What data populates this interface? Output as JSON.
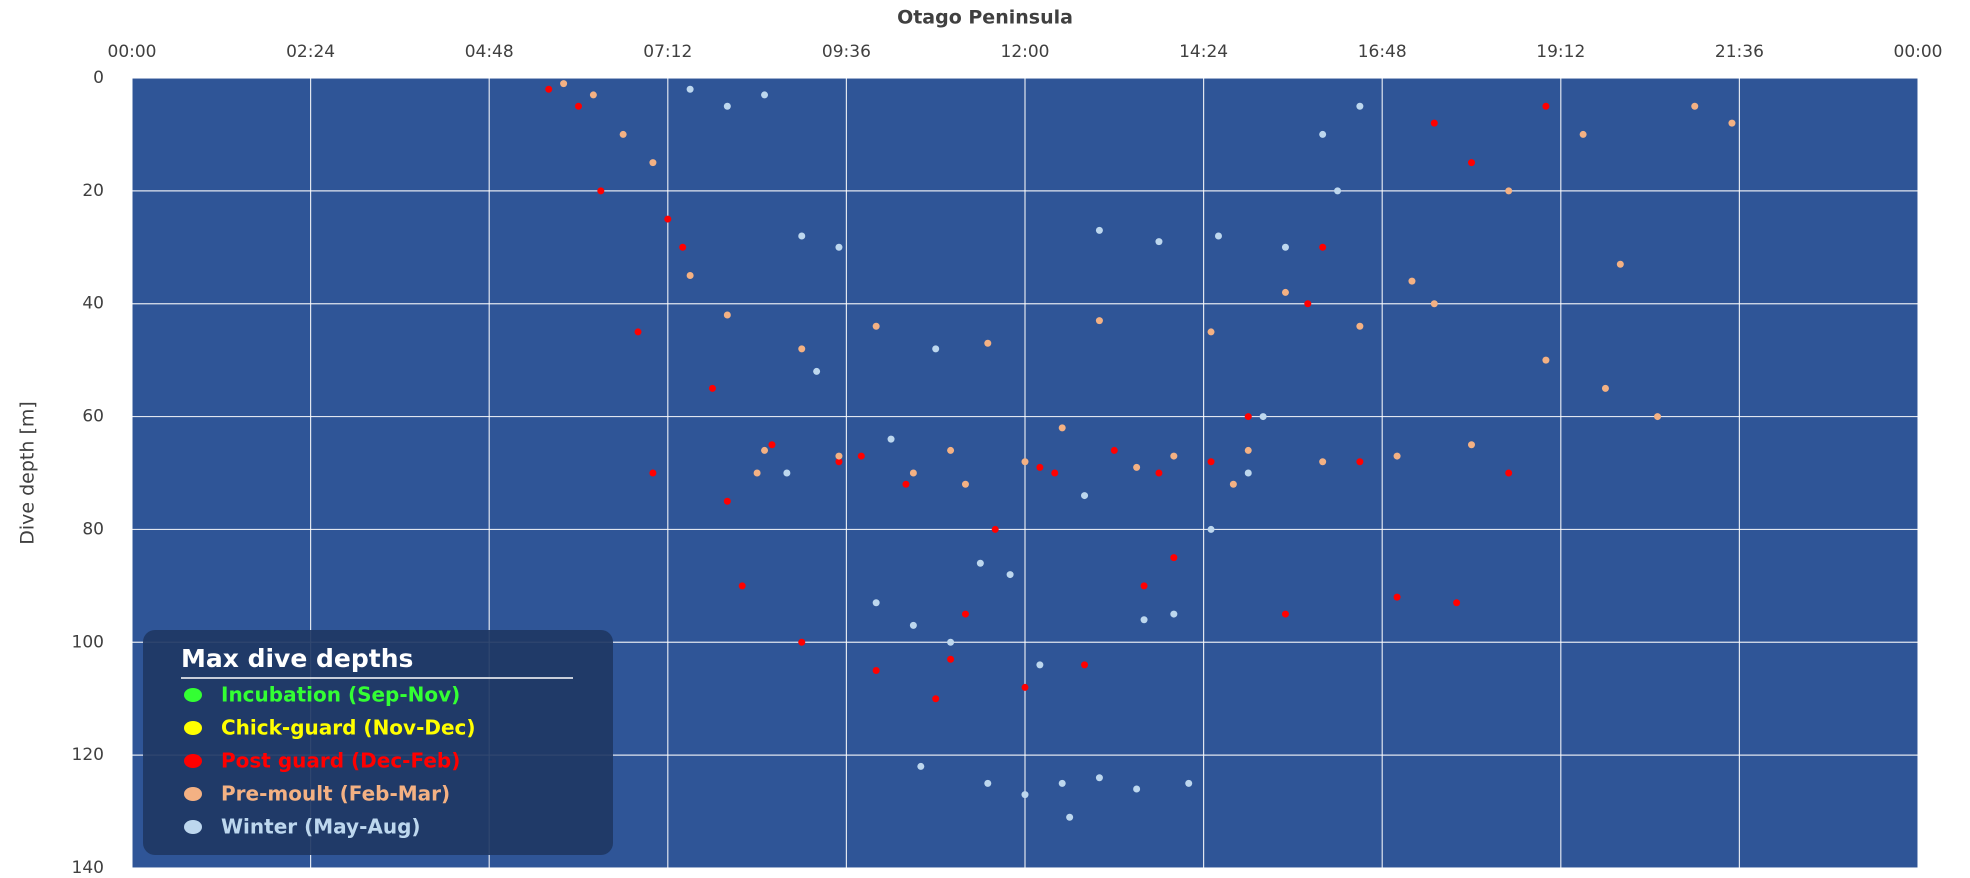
{
  "chart_data": {
    "type": "scatter",
    "title": "Otago Peninsula",
    "y_label": "Dive depth [m]",
    "xlim": [
      0,
      24
    ],
    "xticks": [
      {
        "value": 0,
        "label": "00:00"
      },
      {
        "value": 2.4,
        "label": "02:24"
      },
      {
        "value": 4.8,
        "label": "04:48"
      },
      {
        "value": 7.2,
        "label": "07:12"
      },
      {
        "value": 9.6,
        "label": "09:36"
      },
      {
        "value": 12,
        "label": "12:00"
      },
      {
        "value": 14.4,
        "label": "14:24"
      },
      {
        "value": 16.8,
        "label": "16:48"
      },
      {
        "value": 19.2,
        "label": "19:12"
      },
      {
        "value": 21.6,
        "label": "21:36"
      },
      {
        "value": 24,
        "label": "00:00"
      }
    ],
    "ylim": [
      0,
      140
    ],
    "y_inverted": true,
    "yticks": [
      0,
      20,
      40,
      60,
      80,
      100,
      120,
      140
    ],
    "grid": true,
    "background": "#2f5597",
    "legend_title": "Max dive depths",
    "legend_position": "lower left",
    "series": [
      {
        "name": "Incubation (Sep-Nov)",
        "color": "#33ff33",
        "x": [],
        "values": []
      },
      {
        "name": "Chick-guard (Nov-Dec)",
        "color": "#ffff00",
        "x": [],
        "values": []
      },
      {
        "name": "Post guard (Dec-Feb)",
        "color": "#ff0000",
        "x": [
          5.6,
          6.0,
          6.3,
          6.8,
          7.0,
          7.4,
          7.8,
          8.2,
          8.6,
          9.0,
          9.5,
          10.0,
          10.4,
          10.8,
          11.2,
          11.6,
          12.0,
          12.4,
          12.8,
          13.2,
          13.6,
          14.0,
          14.5,
          15.0,
          15.5,
          16.0,
          16.5,
          17.0,
          17.5,
          18.0,
          18.5,
          19.0,
          7.2,
          8.0,
          9.8,
          11.0,
          12.2,
          13.8,
          15.8,
          17.8
        ],
        "values": [
          2,
          5,
          20,
          45,
          70,
          30,
          55,
          90,
          65,
          100,
          68,
          105,
          72,
          110,
          95,
          80,
          108,
          70,
          104,
          66,
          90,
          85,
          68,
          60,
          95,
          30,
          68,
          92,
          8,
          15,
          70,
          5,
          25,
          75,
          67,
          103,
          69,
          70,
          40,
          93
        ]
      },
      {
        "name": "Pre-moult (Feb-Mar)",
        "color": "#f4b183",
        "x": [
          5.8,
          6.2,
          6.6,
          7.0,
          7.5,
          8.0,
          8.5,
          9.0,
          9.5,
          10.0,
          10.5,
          11.0,
          11.5,
          12.0,
          12.5,
          13.0,
          13.5,
          14.0,
          14.5,
          15.0,
          15.5,
          16.0,
          16.5,
          17.0,
          17.5,
          18.0,
          18.5,
          19.0,
          19.5,
          20.0,
          20.5,
          21.0,
          21.5,
          8.4,
          11.2,
          14.8,
          17.2,
          19.8
        ],
        "values": [
          1,
          3,
          10,
          15,
          35,
          42,
          66,
          48,
          67,
          44,
          70,
          66,
          47,
          68,
          62,
          43,
          69,
          67,
          45,
          66,
          38,
          68,
          44,
          67,
          40,
          65,
          20,
          50,
          10,
          33,
          60,
          5,
          8,
          70,
          72,
          72,
          36,
          55
        ]
      },
      {
        "name": "Winter (May-Aug)",
        "color": "#bdd7ee",
        "x": [
          7.5,
          8.0,
          8.5,
          9.0,
          9.5,
          10.0,
          10.5,
          11.0,
          11.5,
          12.0,
          12.5,
          13.0,
          13.5,
          14.0,
          14.5,
          15.0,
          15.5,
          16.0,
          16.5,
          10.8,
          11.4,
          12.2,
          13.0,
          13.8,
          14.6,
          9.2,
          10.2,
          11.8,
          12.8,
          13.6,
          15.2,
          16.2,
          8.8,
          12.6,
          14.2,
          10.6
        ],
        "values": [
          2,
          5,
          3,
          28,
          30,
          93,
          97,
          100,
          125,
          127,
          125,
          124,
          126,
          95,
          80,
          70,
          30,
          10,
          5,
          48,
          86,
          104,
          27,
          29,
          28,
          52,
          64,
          88,
          74,
          96,
          60,
          20,
          70,
          131,
          125,
          122
        ]
      }
    ]
  }
}
